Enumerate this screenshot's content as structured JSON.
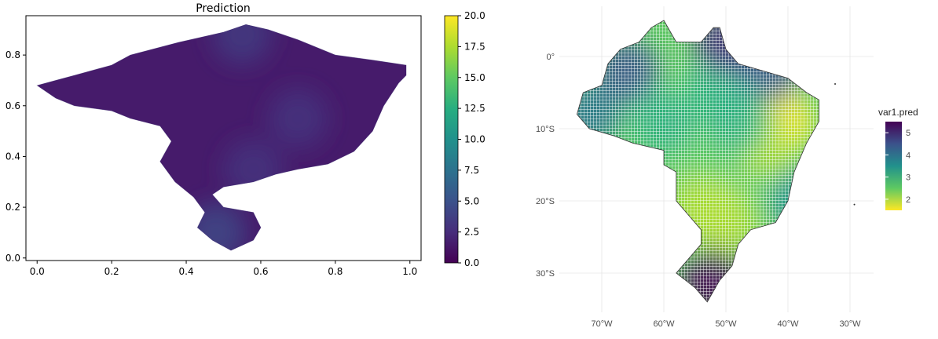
{
  "chart_data": [
    {
      "type": "heatmap",
      "title": "Prediction",
      "xlabel": "",
      "ylabel": "",
      "xlim": [
        -0.03,
        1.03
      ],
      "ylim": [
        -0.01,
        0.955
      ],
      "x_ticks": [
        0.0,
        0.2,
        0.4,
        0.6,
        0.8,
        1.0
      ],
      "x_tick_labels": [
        "0.0",
        "0.2",
        "0.4",
        "0.6",
        "0.8",
        "1.0"
      ],
      "y_ticks": [
        0.0,
        0.2,
        0.4,
        0.6,
        0.8
      ],
      "y_tick_labels": [
        "0.0",
        "0.2",
        "0.4",
        "0.6",
        "0.8"
      ],
      "grid": false,
      "colormap": "viridis",
      "colorbar": {
        "range": [
          0,
          20
        ],
        "ticks": [
          0,
          2.5,
          5,
          7.5,
          10,
          12.5,
          15,
          17.5,
          20
        ],
        "tick_labels": [
          "0.0",
          "2.5",
          "5.0",
          "7.5",
          "10.0",
          "12.5",
          "15.0",
          "17.5",
          "20.0"
        ],
        "placement": "right"
      },
      "value_range_shown": [
        0,
        5
      ],
      "region_outline": [
        [
          0.0,
          0.68
        ],
        [
          0.05,
          0.7
        ],
        [
          0.1,
          0.72
        ],
        [
          0.2,
          0.76
        ],
        [
          0.25,
          0.8
        ],
        [
          0.38,
          0.85
        ],
        [
          0.5,
          0.89
        ],
        [
          0.56,
          0.92
        ],
        [
          0.62,
          0.9
        ],
        [
          0.7,
          0.86
        ],
        [
          0.8,
          0.8
        ],
        [
          0.9,
          0.78
        ],
        [
          0.99,
          0.76
        ],
        [
          0.99,
          0.72
        ],
        [
          0.97,
          0.69
        ],
        [
          0.93,
          0.6
        ],
        [
          0.9,
          0.5
        ],
        [
          0.85,
          0.42
        ],
        [
          0.78,
          0.37
        ],
        [
          0.7,
          0.35
        ],
        [
          0.64,
          0.33
        ],
        [
          0.58,
          0.3
        ],
        [
          0.5,
          0.28
        ],
        [
          0.47,
          0.25
        ],
        [
          0.5,
          0.2
        ],
        [
          0.58,
          0.18
        ],
        [
          0.6,
          0.12
        ],
        [
          0.58,
          0.07
        ],
        [
          0.52,
          0.03
        ],
        [
          0.47,
          0.07
        ],
        [
          0.43,
          0.12
        ],
        [
          0.45,
          0.18
        ],
        [
          0.42,
          0.24
        ],
        [
          0.37,
          0.3
        ],
        [
          0.33,
          0.38
        ],
        [
          0.36,
          0.46
        ],
        [
          0.33,
          0.52
        ],
        [
          0.25,
          0.55
        ],
        [
          0.2,
          0.58
        ],
        [
          0.1,
          0.6
        ],
        [
          0.05,
          0.63
        ],
        [
          0.0,
          0.68
        ]
      ],
      "hotspots": [
        {
          "x": 0.55,
          "y": 0.88,
          "value": 3.5
        },
        {
          "x": 0.48,
          "y": 0.1,
          "value": 4.5
        },
        {
          "x": 0.7,
          "y": 0.55,
          "value": 3.0
        },
        {
          "x": 0.58,
          "y": 0.35,
          "value": 3.0
        }
      ],
      "base_value": 1.5
    },
    {
      "type": "heatmap",
      "title": "",
      "xlabel": "",
      "ylabel": "",
      "xlim": [
        -77,
        -28.5
      ],
      "ylim": [
        -35,
        6
      ],
      "x_ticks": [
        -70,
        -60,
        -50,
        -40,
        -30
      ],
      "x_tick_labels": [
        "70°W",
        "60°W",
        "50°W",
        "40°W",
        "30°W"
      ],
      "y_ticks": [
        0,
        -10,
        -20,
        -30
      ],
      "y_tick_labels": [
        "0°",
        "10°S",
        "20°S",
        "30°S"
      ],
      "grid": true,
      "colormap": "viridis",
      "legend": {
        "title": "var1.pred",
        "range": [
          1.5,
          5.5
        ],
        "ticks": [
          2,
          3,
          4,
          5
        ],
        "tick_labels": [
          "2",
          "3",
          "4",
          "5"
        ],
        "placement": "right"
      },
      "region_outline": [
        [
          -60,
          5
        ],
        [
          -58,
          2
        ],
        [
          -56,
          2
        ],
        [
          -54,
          2
        ],
        [
          -52,
          4
        ],
        [
          -51,
          4
        ],
        [
          -50,
          1
        ],
        [
          -48,
          -1
        ],
        [
          -44,
          -2
        ],
        [
          -40,
          -3
        ],
        [
          -37,
          -5
        ],
        [
          -35,
          -6
        ],
        [
          -35,
          -9
        ],
        [
          -37,
          -12
        ],
        [
          -39,
          -16
        ],
        [
          -40,
          -20
        ],
        [
          -42,
          -23
        ],
        [
          -46,
          -24
        ],
        [
          -48,
          -26
        ],
        [
          -49,
          -29
        ],
        [
          -51,
          -31
        ],
        [
          -53,
          -34
        ],
        [
          -55,
          -32
        ],
        [
          -58,
          -30
        ],
        [
          -56,
          -28
        ],
        [
          -54,
          -26
        ],
        [
          -54,
          -24
        ],
        [
          -56,
          -22
        ],
        [
          -58,
          -20
        ],
        [
          -58,
          -16
        ],
        [
          -60,
          -15
        ],
        [
          -60,
          -13
        ],
        [
          -65,
          -12
        ],
        [
          -68,
          -11
        ],
        [
          -72,
          -10
        ],
        [
          -74,
          -8
        ],
        [
          -73,
          -5
        ],
        [
          -70,
          -4
        ],
        [
          -69,
          -1
        ],
        [
          -67,
          1
        ],
        [
          -64,
          2
        ],
        [
          -62,
          4
        ],
        [
          -60,
          5
        ]
      ],
      "field": [
        {
          "lon": -41,
          "lat": -9,
          "value": 1.5
        },
        {
          "lon": -44,
          "lat": -12,
          "value": 2.0
        },
        {
          "lon": -52,
          "lat": -16,
          "value": 2.5
        },
        {
          "lon": -54,
          "lat": -21,
          "value": 2.0
        },
        {
          "lon": -50,
          "lat": -23,
          "value": 2.0
        },
        {
          "lon": -60,
          "lat": -9,
          "value": 3.0
        },
        {
          "lon": -51,
          "lat": -4,
          "value": 3.0
        },
        {
          "lon": -52,
          "lat": -31,
          "value": 5.5
        },
        {
          "lon": -66,
          "lat": -2,
          "value": 4.5
        },
        {
          "lon": -72,
          "lat": -8,
          "value": 4.0
        },
        {
          "lon": -50,
          "lat": 2,
          "value": 5.0
        },
        {
          "lon": -43,
          "lat": -2,
          "value": 4.5
        },
        {
          "lon": -38,
          "lat": -20,
          "value": 3.5
        },
        {
          "lon": -48,
          "lat": -9,
          "value": 3.0
        }
      ],
      "islands": [
        [
          -32.4,
          -3.8
        ],
        [
          -29.3,
          -20.5
        ]
      ]
    }
  ]
}
